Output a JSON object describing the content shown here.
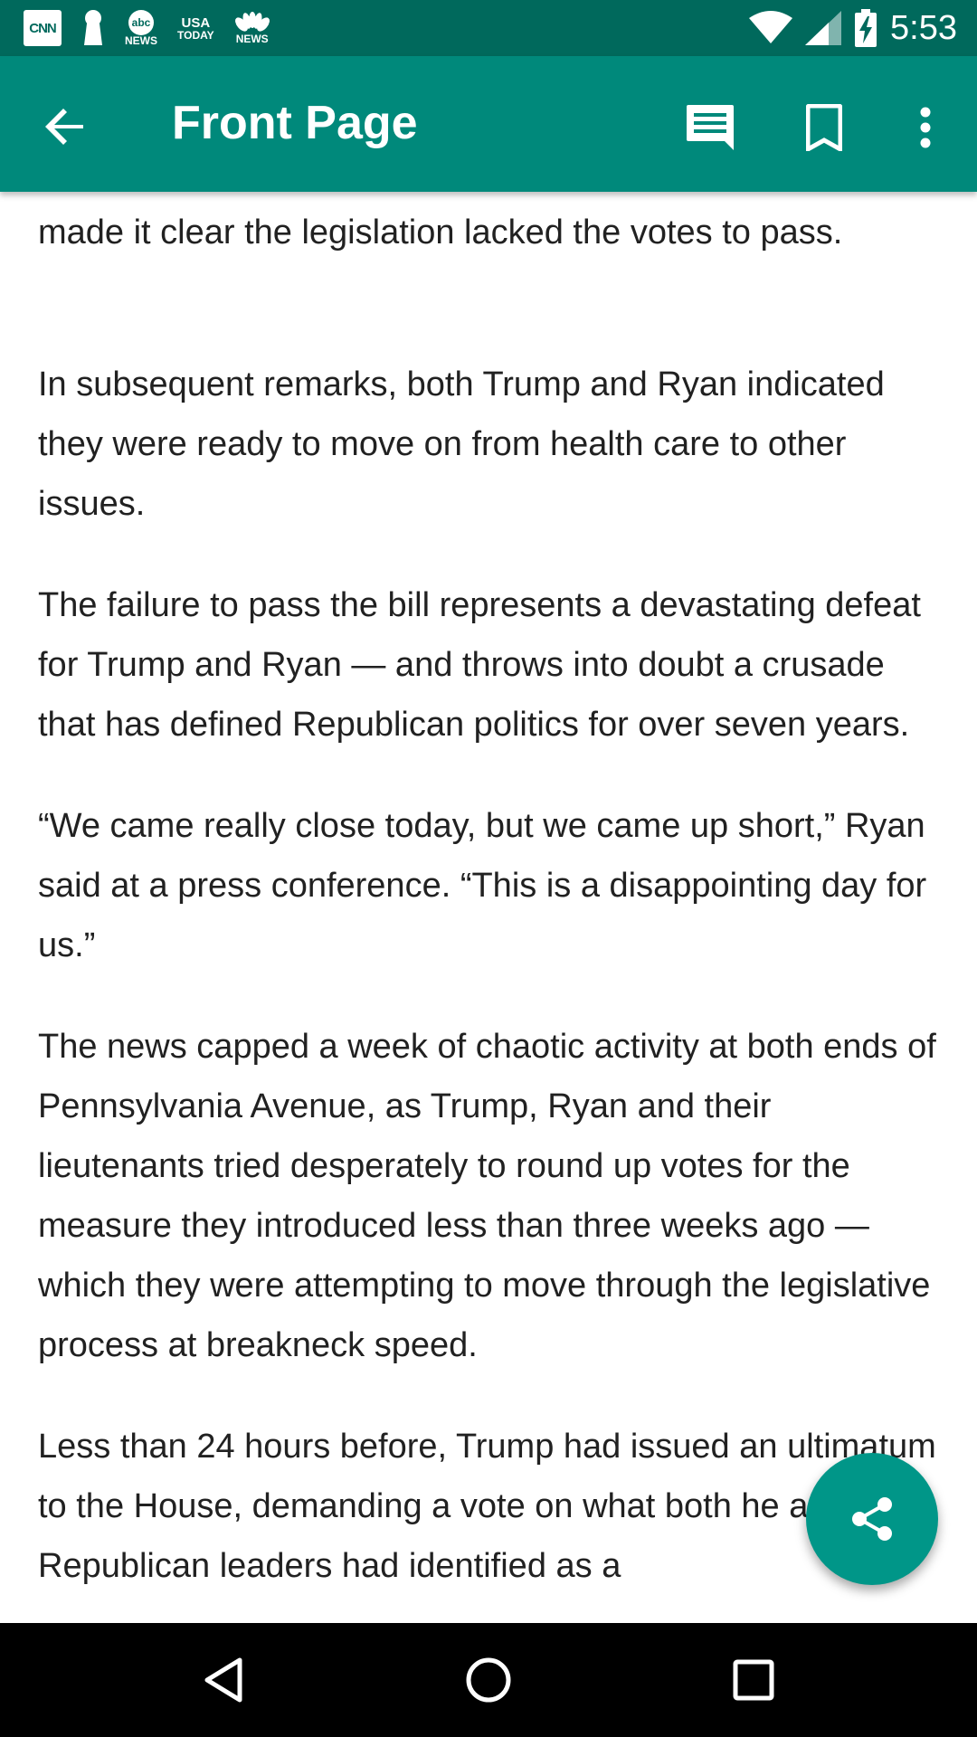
{
  "status_bar": {
    "time": "5:53",
    "notifications": [
      {
        "icon": "cnn-icon",
        "text": "CNN"
      },
      {
        "icon": "keyhole-icon",
        "text": ""
      },
      {
        "icon": "abc-news-icon",
        "text_top": "abc",
        "text_bottom": "NEWS"
      },
      {
        "icon": "usa-today-icon",
        "text_top": "USA",
        "text_bottom": "TODAY"
      },
      {
        "icon": "nbc-news-icon",
        "text_bottom": "NEWS"
      }
    ],
    "system_icons": [
      "wifi-icon",
      "signal-icon",
      "battery-charging-icon"
    ]
  },
  "app_bar": {
    "title": "Front Page",
    "actions": [
      "comments-icon",
      "bookmark-icon",
      "more-vert-icon"
    ]
  },
  "article": {
    "paragraphs": [
      "made it clear the legislation lacked the votes to pass.",
      "In subsequent remarks, both Trump and Ryan indicated they were ready to move on from health care to other issues.",
      "The failure to pass the bill represents a devastating defeat for Trump and Ryan — and throws into doubt a crusade that has defined Republican politics for over seven years.",
      "“We came really close today, but we came up short,” Ryan said at a press conference. “This is a disappointing day for us.”",
      "The news capped a week of chaotic activity at both ends of Pennsylvania Avenue, as Trump, Ryan and their lieutenants tried desperately to round up votes for the measure they introduced less than three weeks ago — which they were attempting to move through the legislative process at breakneck speed.",
      "Less than 24 hours before, Trump had issued an ultimatum to the House, demanding a vote on what both he and Republican leaders had identified as a"
    ]
  },
  "fab": {
    "icon": "share-icon"
  },
  "nav_bar": {
    "buttons": [
      "back-triangle-icon",
      "home-circle-icon",
      "recents-square-icon"
    ]
  },
  "colors": {
    "status_bar": "#00695c",
    "app_bar": "#00897b",
    "fab": "#009688",
    "text": "#212121"
  }
}
